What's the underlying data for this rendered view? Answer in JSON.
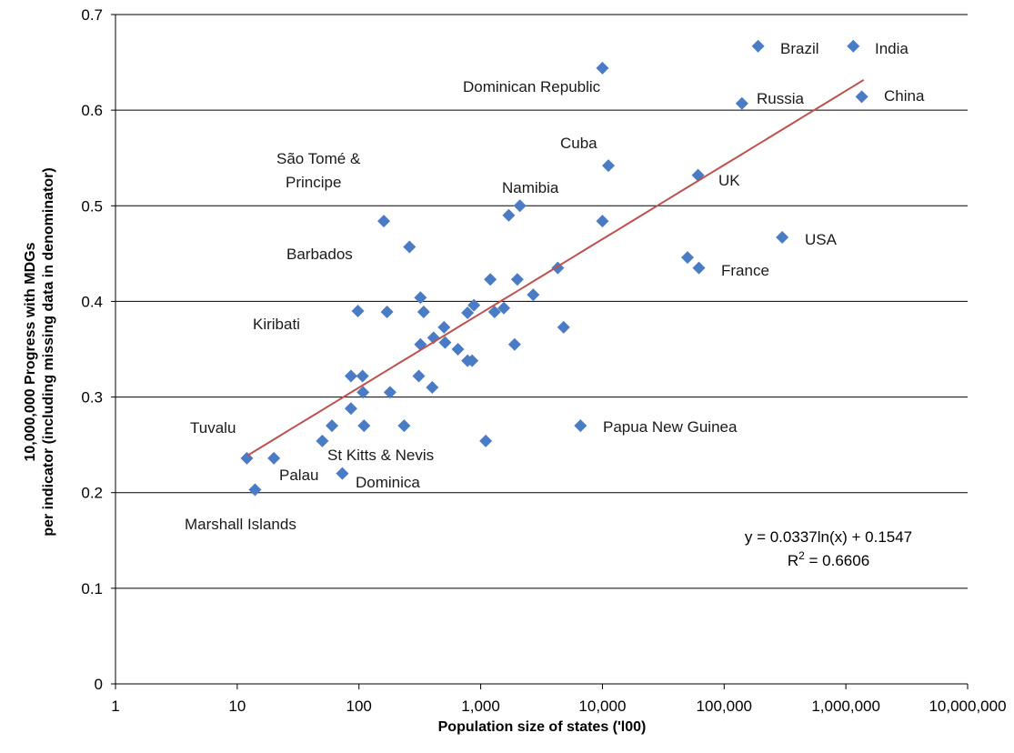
{
  "chart_data": {
    "type": "scatter",
    "x_scale": "log",
    "xlabel": "Population size of states ('l00)",
    "ylabel_lines": [
      "10,000,000 Progress  with MDGs",
      "per indicator (including missing data in denominator)"
    ],
    "xlim": [
      1,
      10000000
    ],
    "ylim": [
      0,
      0.7
    ],
    "x_ticks": [
      1,
      10,
      100,
      1000,
      10000,
      100000,
      1000000,
      10000000
    ],
    "x_tick_labels": [
      "1",
      "10",
      "100",
      "1,000",
      "10,000",
      "100,000",
      "1,000,000",
      "10,000,000"
    ],
    "y_ticks": [
      0,
      0.1,
      0.2,
      0.3,
      0.4,
      0.5,
      0.6,
      0.7
    ],
    "y_tick_labels": [
      "0",
      "0.1",
      "0.2",
      "0.3",
      "0.4",
      "0.5",
      "0.6",
      "0.7"
    ],
    "grid": "horizontal",
    "marker_color": "#4a7cc5",
    "trend_color": "#c0504d",
    "trendline": {
      "type": "log",
      "a": 0.0337,
      "b": 0.1547,
      "x_range": [
        12,
        1400000
      ]
    },
    "equation": {
      "line1": "y = 0.0337ln(x) + 0.1547",
      "r2_prefix": "R",
      "r2_sup": "2",
      "r2_value": " = 0.6606"
    },
    "points": [
      {
        "x": 1150000,
        "y": 0.667
      },
      {
        "x": 190000,
        "y": 0.667
      },
      {
        "x": 10000,
        "y": 0.644
      },
      {
        "x": 140000,
        "y": 0.607
      },
      {
        "x": 1350000,
        "y": 0.614
      },
      {
        "x": 11200,
        "y": 0.542
      },
      {
        "x": 61000,
        "y": 0.532
      },
      {
        "x": 2100,
        "y": 0.5
      },
      {
        "x": 1700,
        "y": 0.49
      },
      {
        "x": 160,
        "y": 0.484
      },
      {
        "x": 10000,
        "y": 0.484
      },
      {
        "x": 300000,
        "y": 0.467
      },
      {
        "x": 260,
        "y": 0.457
      },
      {
        "x": 50000,
        "y": 0.446
      },
      {
        "x": 62000,
        "y": 0.435
      },
      {
        "x": 4300,
        "y": 0.435
      },
      {
        "x": 1200,
        "y": 0.423
      },
      {
        "x": 2000,
        "y": 0.423
      },
      {
        "x": 2700,
        "y": 0.407
      },
      {
        "x": 320,
        "y": 0.404
      },
      {
        "x": 880,
        "y": 0.396
      },
      {
        "x": 1550,
        "y": 0.393
      },
      {
        "x": 1300,
        "y": 0.389
      },
      {
        "x": 780,
        "y": 0.388
      },
      {
        "x": 98,
        "y": 0.39
      },
      {
        "x": 170,
        "y": 0.389
      },
      {
        "x": 340,
        "y": 0.389
      },
      {
        "x": 500,
        "y": 0.373
      },
      {
        "x": 4800,
        "y": 0.373
      },
      {
        "x": 410,
        "y": 0.362
      },
      {
        "x": 510,
        "y": 0.357
      },
      {
        "x": 320,
        "y": 0.355
      },
      {
        "x": 650,
        "y": 0.35
      },
      {
        "x": 1900,
        "y": 0.355
      },
      {
        "x": 780,
        "y": 0.338
      },
      {
        "x": 850,
        "y": 0.338
      },
      {
        "x": 86,
        "y": 0.322
      },
      {
        "x": 107,
        "y": 0.322
      },
      {
        "x": 310,
        "y": 0.322
      },
      {
        "x": 400,
        "y": 0.31
      },
      {
        "x": 108,
        "y": 0.305
      },
      {
        "x": 180,
        "y": 0.305
      },
      {
        "x": 86,
        "y": 0.288
      },
      {
        "x": 60,
        "y": 0.27
      },
      {
        "x": 110,
        "y": 0.27
      },
      {
        "x": 235,
        "y": 0.27
      },
      {
        "x": 6600,
        "y": 0.27
      },
      {
        "x": 50,
        "y": 0.254
      },
      {
        "x": 1100,
        "y": 0.254
      },
      {
        "x": 12,
        "y": 0.236
      },
      {
        "x": 20,
        "y": 0.236
      },
      {
        "x": 73,
        "y": 0.22
      },
      {
        "x": 14,
        "y": 0.203
      }
    ],
    "labels": [
      {
        "text": "Brazil"
      },
      {
        "text": "India"
      },
      {
        "text": "Dominican Republic"
      },
      {
        "text": "Russia"
      },
      {
        "text": "China"
      },
      {
        "text": "Cuba"
      },
      {
        "text": "UK"
      },
      {
        "text": "São Tomé &"
      },
      {
        "text": "Principe"
      },
      {
        "text": "Namibia"
      },
      {
        "text": "USA"
      },
      {
        "text": "Barbados"
      },
      {
        "text": "France"
      },
      {
        "text": "Kiribati"
      },
      {
        "text": "Tuvalu"
      },
      {
        "text": "Papua New Guinea"
      },
      {
        "text": "St Kitts & Nevis"
      },
      {
        "text": "Palau"
      },
      {
        "text": "Dominica"
      },
      {
        "text": "Marshall Islands"
      }
    ]
  }
}
